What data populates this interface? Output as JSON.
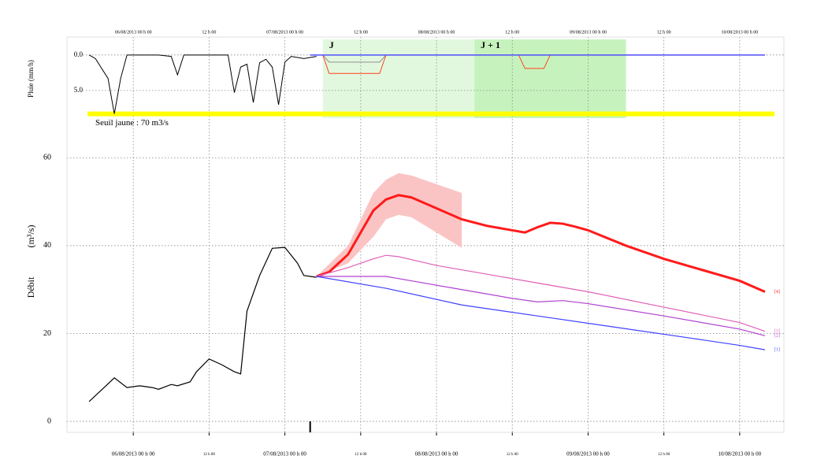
{
  "chart_data": {
    "type": "line",
    "y_label": "Débit",
    "y_unit": "(m³/s)",
    "y2_label": "Pluie (mm/h)",
    "xlim": [
      "05/08/2013 13 h 30",
      "10/08/2013 07 h 00"
    ],
    "xticks": [
      {
        "value": "06/08/2013 00 h 00",
        "label": "06/08/2013 00 h 00"
      },
      {
        "value": "06/08/2013 12 h 00",
        "label": "12 h 00"
      },
      {
        "value": "07/08/2013 00 h 00",
        "label": "07/08/2013 00 h 00"
      },
      {
        "value": "07/08/2013 12 h 00",
        "label": "12 h 00"
      },
      {
        "value": "08/08/2013 00 h 00",
        "label": "08/08/2013 00 h 00"
      },
      {
        "value": "08/08/2013 12 h 00",
        "label": "12 h 00"
      },
      {
        "value": "09/08/2013 00 h 00",
        "label": "09/08/2013 00 h 00"
      },
      {
        "value": "09/08/2013 12 h 00",
        "label": "12 h 00"
      },
      {
        "value": "10/08/2013 00 h 00",
        "label": "10/08/2013 00 h 00"
      }
    ],
    "ylim": [
      -2.5,
      87.5
    ],
    "yticks": [
      0,
      20,
      40,
      60
    ],
    "y2lim": [
      -2.2,
      8.9
    ],
    "y2ticks": [
      {
        "value": 0,
        "label": "0.0"
      },
      {
        "value": 5,
        "label": "5.0"
      }
    ],
    "grid": true,
    "periods": [
      {
        "label": "J",
        "start": "07/08/2013 06 h 00",
        "end": "08/08/2013 06 h 00",
        "color": "#e2f8de"
      },
      {
        "label": "J + 1",
        "start": "08/08/2013 06 h 00",
        "end": "09/08/2013 06 h 00",
        "color": "#c6f3bd"
      }
    ],
    "threshold": {
      "label": "Seuil jaune : 70 m3/s",
      "value": 70,
      "color": "#ffff00",
      "start": "05/08/2013 16 h 45",
      "end": "10/08/2013 05 h 30"
    },
    "forecast_time": "07/08/2013 04 h 00",
    "band": {
      "color": "#fbc4c4",
      "x": [
        "07/08/2013 05 h 00",
        "07/08/2013 10 h 00",
        "07/08/2013 14 h 00",
        "07/08/2013 16 h 00",
        "07/08/2013 18 h 00",
        "07/08/2013 20 h 00",
        "08/08/2013 00 h 00",
        "08/08/2013 04 h 00"
      ],
      "upper": [
        33,
        40,
        52,
        55,
        56.5,
        56,
        54,
        52
      ],
      "lower": [
        33,
        36,
        42,
        46,
        47,
        46.5,
        43,
        39.5
      ]
    },
    "series": [
      {
        "color": "#000000",
        "width": 1.2,
        "x": [
          "05/08/2013 17 h 00",
          "05/08/2013 19 h 00",
          "05/08/2013 21 h 00",
          "05/08/2013 23 h 00",
          "06/08/2013 01 h 00",
          "06/08/2013 03 h 00",
          "06/08/2013 04 h 00",
          "06/08/2013 06 h 00",
          "06/08/2013 07 h 00",
          "06/08/2013 09 h 00",
          "06/08/2013 10 h 00",
          "06/08/2013 12 h 00",
          "06/08/2013 14 h 00",
          "06/08/2013 16 h 00",
          "06/08/2013 17 h 00",
          "06/08/2013 18 h 00",
          "06/08/2013 20 h 00",
          "06/08/2013 22 h 00",
          "07/08/2013 00 h 00",
          "07/08/2013 02 h 00",
          "07/08/2013 03 h 00",
          "07/08/2013 05 h 00"
        ],
        "values": [
          4.5,
          7.2,
          9.9,
          7.7,
          8.1,
          7.7,
          7.3,
          8.4,
          8.1,
          9,
          11.3,
          14.2,
          12.9,
          11.3,
          10.8,
          25.1,
          33.2,
          39.4,
          39.6,
          36,
          33.2,
          32.8
        ]
      },
      {
        "name": "[4]",
        "color": "#ff1a1a",
        "width": 3,
        "x": [
          "07/08/2013 05 h 00",
          "07/08/2013 07 h 00",
          "07/08/2013 10 h 00",
          "07/08/2013 12 h 00",
          "07/08/2013 14 h 00",
          "07/08/2013 16 h 00",
          "07/08/2013 18 h 00",
          "07/08/2013 20 h 00",
          "08/08/2013 00 h 00",
          "08/08/2013 04 h 00",
          "08/08/2013 08 h 00",
          "08/08/2013 12 h 00",
          "08/08/2013 14 h 00",
          "08/08/2013 16 h 00",
          "08/08/2013 18 h 00",
          "08/08/2013 20 h 00",
          "08/08/2013 22 h 00",
          "09/08/2013 00 h 00",
          "09/08/2013 06 h 00",
          "09/08/2013 12 h 00",
          "09/08/2013 18 h 00",
          "10/08/2013 00 h 00",
          "10/08/2013 04 h 00"
        ],
        "values": [
          33,
          34,
          38,
          43,
          48,
          50.5,
          51.5,
          51,
          48.5,
          46,
          44.5,
          43.5,
          43,
          44.2,
          45.2,
          45,
          44.3,
          43.5,
          40,
          37,
          34.5,
          32,
          29.5
        ]
      },
      {
        "name": "[3]",
        "color": "#e060b8",
        "width": 1.2,
        "x": [
          "07/08/2013 05 h 00",
          "07/08/2013 10 h 00",
          "07/08/2013 14 h 00",
          "07/08/2013 16 h 00",
          "07/08/2013 18 h 00",
          "08/08/2013 00 h 00",
          "08/08/2013 08 h 00",
          "08/08/2013 16 h 00",
          "09/08/2013 00 h 00",
          "09/08/2013 12 h 00",
          "10/08/2013 00 h 00",
          "10/08/2013 04 h 00"
        ],
        "values": [
          33,
          35,
          37,
          37.8,
          37.5,
          35.5,
          33.5,
          31.5,
          29.5,
          26,
          22.5,
          20.5
        ]
      },
      {
        "name": "[2]",
        "color": "#b040d0",
        "width": 1.2,
        "x": [
          "07/08/2013 05 h 00",
          "07/08/2013 12 h 00",
          "07/08/2013 16 h 00",
          "07/08/2013 20 h 00",
          "08/08/2013 04 h 00",
          "08/08/2013 12 h 00",
          "08/08/2013 16 h 00",
          "08/08/2013 20 h 00",
          "09/08/2013 00 h 00",
          "09/08/2013 12 h 00",
          "10/08/2013 00 h 00",
          "10/08/2013 04 h 00"
        ],
        "values": [
          33,
          33,
          33,
          32,
          30,
          28,
          27.2,
          27.5,
          26.8,
          24,
          21,
          19.5
        ]
      },
      {
        "name": "[1]",
        "color": "#4040ff",
        "width": 1.2,
        "x": [
          "07/08/2013 05 h 00",
          "07/08/2013 16 h 00",
          "08/08/2013 04 h 00",
          "08/08/2013 16 h 00",
          "09/08/2013 04 h 00",
          "09/08/2013 16 h 00",
          "10/08/2013 00 h 00",
          "10/08/2013 04 h 00"
        ],
        "values": [
          33,
          30.3,
          26.5,
          24,
          21.5,
          19,
          17.3,
          16.3
        ]
      },
      {
        "axis": "y2",
        "color": "#000000",
        "width": 1,
        "x": [
          "05/08/2013 17 h 00",
          "05/08/2013 18 h 00",
          "05/08/2013 20 h 00",
          "05/08/2013 21 h 00",
          "05/08/2013 22 h 00",
          "05/08/2013 23 h 00",
          "06/08/2013 04 h 00",
          "06/08/2013 06 h 00",
          "06/08/2013 07 h 00",
          "06/08/2013 08 h 00",
          "06/08/2013 15 h 00",
          "06/08/2013 16 h 00",
          "06/08/2013 17 h 00",
          "06/08/2013 18 h 00",
          "06/08/2013 19 h 00",
          "06/08/2013 20 h 00",
          "06/08/2013 21 h 00",
          "06/08/2013 22 h 00",
          "06/08/2013 23 h 00",
          "07/08/2013 00 h 00",
          "07/08/2013 01 h 00",
          "07/08/2013 03 h 00",
          "07/08/2013 05 h 00"
        ],
        "values": [
          0,
          0.5,
          3.3,
          8.3,
          3.3,
          0,
          0,
          0.2,
          2.8,
          0,
          0,
          5.3,
          1.7,
          1.3,
          6.7,
          1.1,
          0.6,
          1.7,
          7,
          1,
          0.2,
          0.5,
          0.2
        ]
      },
      {
        "axis": "y2",
        "color": "#ff4020",
        "width": 1,
        "x": [
          "07/08/2013 06 h 00",
          "07/08/2013 07 h 00",
          "07/08/2013 15 h 00",
          "07/08/2013 16 h 00",
          "08/08/2013 13 h 00",
          "08/08/2013 14 h 00",
          "08/08/2013 17 h 00",
          "08/08/2013 18 h 00",
          "10/08/2013 04 h 00"
        ],
        "values": [
          0,
          2.6,
          2.6,
          0,
          0,
          1.9,
          1.9,
          0,
          0
        ]
      },
      {
        "axis": "y2",
        "color": "#909090",
        "width": 1,
        "x": [
          "07/08/2013 06 h 00",
          "07/08/2013 07 h 00",
          "07/08/2013 15 h 00",
          "07/08/2013 16 h 00",
          "10/08/2013 04 h 00"
        ],
        "values": [
          0,
          1,
          1,
          0,
          0
        ]
      },
      {
        "axis": "y2",
        "color": "#5050ff",
        "width": 1.5,
        "x": [
          "07/08/2013 04 h 00",
          "10/08/2013 04 h 00"
        ],
        "values": [
          0,
          0
        ]
      }
    ]
  }
}
